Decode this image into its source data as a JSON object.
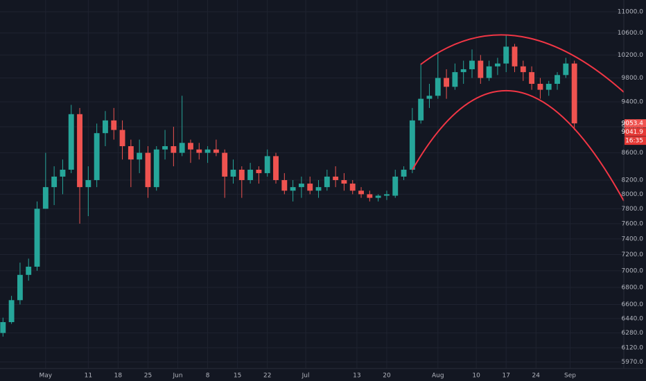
{
  "chart_data": {
    "type": "candlestick",
    "x": [
      -10,
      -8,
      -6,
      -4,
      -2,
      0,
      2,
      4,
      6,
      8,
      10,
      12,
      14,
      16,
      18,
      20,
      22,
      24,
      26,
      28,
      30,
      32,
      34,
      36,
      38,
      40,
      42,
      44,
      46,
      48,
      50,
      52,
      54,
      56,
      58,
      60,
      62,
      64,
      66,
      68,
      70,
      72,
      74,
      76,
      78,
      80,
      82,
      84,
      86,
      88,
      90,
      92,
      94,
      96,
      98,
      100,
      102,
      104,
      106,
      108,
      110,
      112,
      114,
      116,
      118,
      120,
      122,
      124
    ],
    "open": [
      6280,
      6400,
      6650,
      6950,
      7050,
      7800,
      8100,
      8250,
      8350,
      9200,
      8100,
      8200,
      8900,
      9100,
      8950,
      8700,
      8500,
      8600,
      8100,
      8650,
      8700,
      8600,
      8750,
      8650,
      8600,
      8650,
      8600,
      8250,
      8350,
      8200,
      8350,
      8300,
      8550,
      8200,
      8050,
      8100,
      8150,
      8050,
      8100,
      8250,
      8200,
      8150,
      8050,
      8000,
      7950,
      7980,
      7980,
      8250,
      8350,
      9100,
      9450,
      9500,
      9800,
      9650,
      9900,
      9950,
      10100,
      9800,
      10000,
      10050,
      10350,
      10000,
      9900,
      9700,
      9600,
      9700,
      9850,
      10050
    ],
    "high": [
      6450,
      6700,
      7100,
      7150,
      7900,
      8600,
      8400,
      8500,
      9350,
      9300,
      8400,
      9050,
      9250,
      9300,
      9100,
      8800,
      8800,
      8700,
      8700,
      8950,
      9000,
      9500,
      8800,
      8750,
      8700,
      8800,
      8650,
      8500,
      8400,
      8450,
      8400,
      8650,
      8600,
      8300,
      8200,
      8250,
      8250,
      8200,
      8350,
      8400,
      8300,
      8200,
      8100,
      8050,
      8000,
      8050,
      8350,
      8400,
      9300,
      10050,
      9700,
      10250,
      9950,
      10050,
      10100,
      10300,
      10200,
      10100,
      10150,
      10550,
      10400,
      10100,
      10000,
      9800,
      9750,
      9900,
      10150,
      10100
    ],
    "low": [
      6240,
      6380,
      6600,
      6880,
      7000,
      7800,
      7850,
      8000,
      8300,
      7600,
      7700,
      8100,
      8700,
      8800,
      8500,
      8100,
      8300,
      7950,
      8050,
      8500,
      8400,
      8550,
      8450,
      8500,
      8450,
      8550,
      7950,
      8150,
      7950,
      8150,
      8150,
      8250,
      8150,
      8000,
      7900,
      7950,
      8000,
      7950,
      8050,
      8100,
      8050,
      8000,
      7950,
      7900,
      7900,
      7920,
      7950,
      8200,
      8300,
      9050,
      9300,
      9450,
      9450,
      9600,
      9700,
      9800,
      9700,
      9750,
      9850,
      9900,
      9900,
      9750,
      9600,
      9450,
      9500,
      9600,
      9800,
      8950
    ],
    "close": [
      6400,
      6650,
      6950,
      7050,
      7800,
      8100,
      8250,
      8350,
      9200,
      8100,
      8200,
      8900,
      9100,
      8950,
      8700,
      8500,
      8600,
      8100,
      8650,
      8700,
      8600,
      8750,
      8650,
      8600,
      8650,
      8600,
      8250,
      8350,
      8200,
      8350,
      8300,
      8550,
      8200,
      8050,
      8100,
      8150,
      8050,
      8100,
      8250,
      8200,
      8150,
      8050,
      8000,
      7950,
      7980,
      8000,
      8250,
      8350,
      9100,
      9450,
      9500,
      9800,
      9650,
      9900,
      9950,
      10100,
      9800,
      10000,
      10050,
      10350,
      10000,
      9900,
      9700,
      9600,
      9700,
      9850,
      10050,
      9053
    ],
    "up_color": "#26a69a",
    "down_color": "#ef5350",
    "log_scale": true,
    "grid": true,
    "xlim": [
      -10.7,
      135.6
    ],
    "xticks": [
      {
        "value": 0,
        "label": "May"
      },
      {
        "value": 10,
        "label": "11"
      },
      {
        "value": 17,
        "label": "18"
      },
      {
        "value": 24,
        "label": "25"
      },
      {
        "value": 31,
        "label": "Jun"
      },
      {
        "value": 38,
        "label": "8"
      },
      {
        "value": 45,
        "label": "15"
      },
      {
        "value": 52,
        "label": "22"
      },
      {
        "value": 61,
        "label": "Jul"
      },
      {
        "value": 73,
        "label": "13"
      },
      {
        "value": 80,
        "label": "20"
      },
      {
        "value": 92,
        "label": "Aug"
      },
      {
        "value": 101,
        "label": "10"
      },
      {
        "value": 108,
        "label": "17"
      },
      {
        "value": 115,
        "label": "24"
      },
      {
        "value": 123,
        "label": "Sep"
      }
    ],
    "ylim": [
      5902,
      11228
    ],
    "yticks": [
      {
        "value": 5970,
        "label": "5970.0"
      },
      {
        "value": 6120,
        "label": "6120.0"
      },
      {
        "value": 6280,
        "label": "6280.0"
      },
      {
        "value": 6440,
        "label": "6440.0"
      },
      {
        "value": 6600,
        "label": "6600.0"
      },
      {
        "value": 6800,
        "label": "6800.0"
      },
      {
        "value": 7000,
        "label": "7000.0"
      },
      {
        "value": 7200,
        "label": "7200.0"
      },
      {
        "value": 7400,
        "label": "7400.0"
      },
      {
        "value": 7600,
        "label": "7600.0"
      },
      {
        "value": 7800,
        "label": "7800.0"
      },
      {
        "value": 8000,
        "label": "8000.0"
      },
      {
        "value": 8200,
        "label": "8200.0"
      },
      {
        "value": 8600,
        "label": "8600.0"
      },
      {
        "value": 9000,
        "label": "9000.0"
      },
      {
        "value": 9400,
        "label": "9400.0"
      },
      {
        "value": 9800,
        "label": "9800.0"
      },
      {
        "value": 10200,
        "label": "10200.0"
      },
      {
        "value": 10600,
        "label": "10600.0"
      },
      {
        "value": 11000,
        "label": "11000.0"
      }
    ],
    "annotations": [
      "9053.4",
      "9041.9",
      "16:35"
    ]
  }
}
